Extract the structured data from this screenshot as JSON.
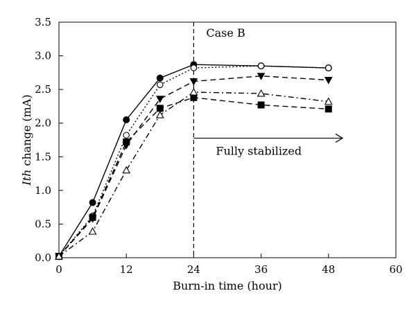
{
  "chart_data": {
    "type": "line",
    "title": "",
    "xlabel": "Burn-in time (hour)",
    "ylabel_italic": "Ith",
    "ylabel_rest": " change (mA)",
    "xlim": [
      0,
      60
    ],
    "ylim": [
      0.0,
      3.5
    ],
    "x_ticks": [
      "0",
      "12",
      "24",
      "36",
      "48",
      "60"
    ],
    "y_ticks": [
      "0.0",
      "0.5",
      "1.0",
      "1.5",
      "2.0",
      "2.5",
      "3.0",
      "3.5"
    ],
    "grid": false,
    "legend": "none",
    "series": [
      {
        "line_style": "solid",
        "marker": "filled-circle",
        "x": [
          0,
          6,
          12,
          18,
          24,
          36,
          48
        ],
        "y": [
          0.02,
          0.82,
          2.05,
          2.67,
          2.87,
          2.85,
          2.82
        ]
      },
      {
        "line_style": "dotted",
        "marker": "open-circle",
        "x": [
          0,
          6,
          12,
          18,
          24,
          36,
          48
        ],
        "y": [
          0.02,
          0.62,
          1.82,
          2.57,
          2.82,
          2.85,
          2.82
        ]
      },
      {
        "line_style": "dashed",
        "marker": "filled-triangle-down",
        "x": [
          0,
          6,
          12,
          18,
          24,
          36,
          48
        ],
        "y": [
          0.02,
          0.58,
          1.67,
          2.36,
          2.62,
          2.7,
          2.64
        ]
      },
      {
        "line_style": "dashed",
        "marker": "filled-square",
        "x": [
          0,
          6,
          12,
          18,
          24,
          36,
          48
        ],
        "y": [
          0.02,
          0.6,
          1.72,
          2.22,
          2.38,
          2.27,
          2.21
        ]
      },
      {
        "line_style": "dash-dot",
        "marker": "open-triangle-up",
        "x": [
          0,
          6,
          12,
          18,
          24,
          36,
          48
        ],
        "y": [
          0.02,
          0.39,
          1.3,
          2.12,
          2.46,
          2.44,
          2.32
        ]
      }
    ],
    "annotations": {
      "vline_x": 24,
      "case_label": "Case B",
      "arrow_label": "Fully stabilized",
      "arrow_from_x": 24,
      "arrow_to_x": 50.5,
      "arrow_y": 1.55
    }
  }
}
